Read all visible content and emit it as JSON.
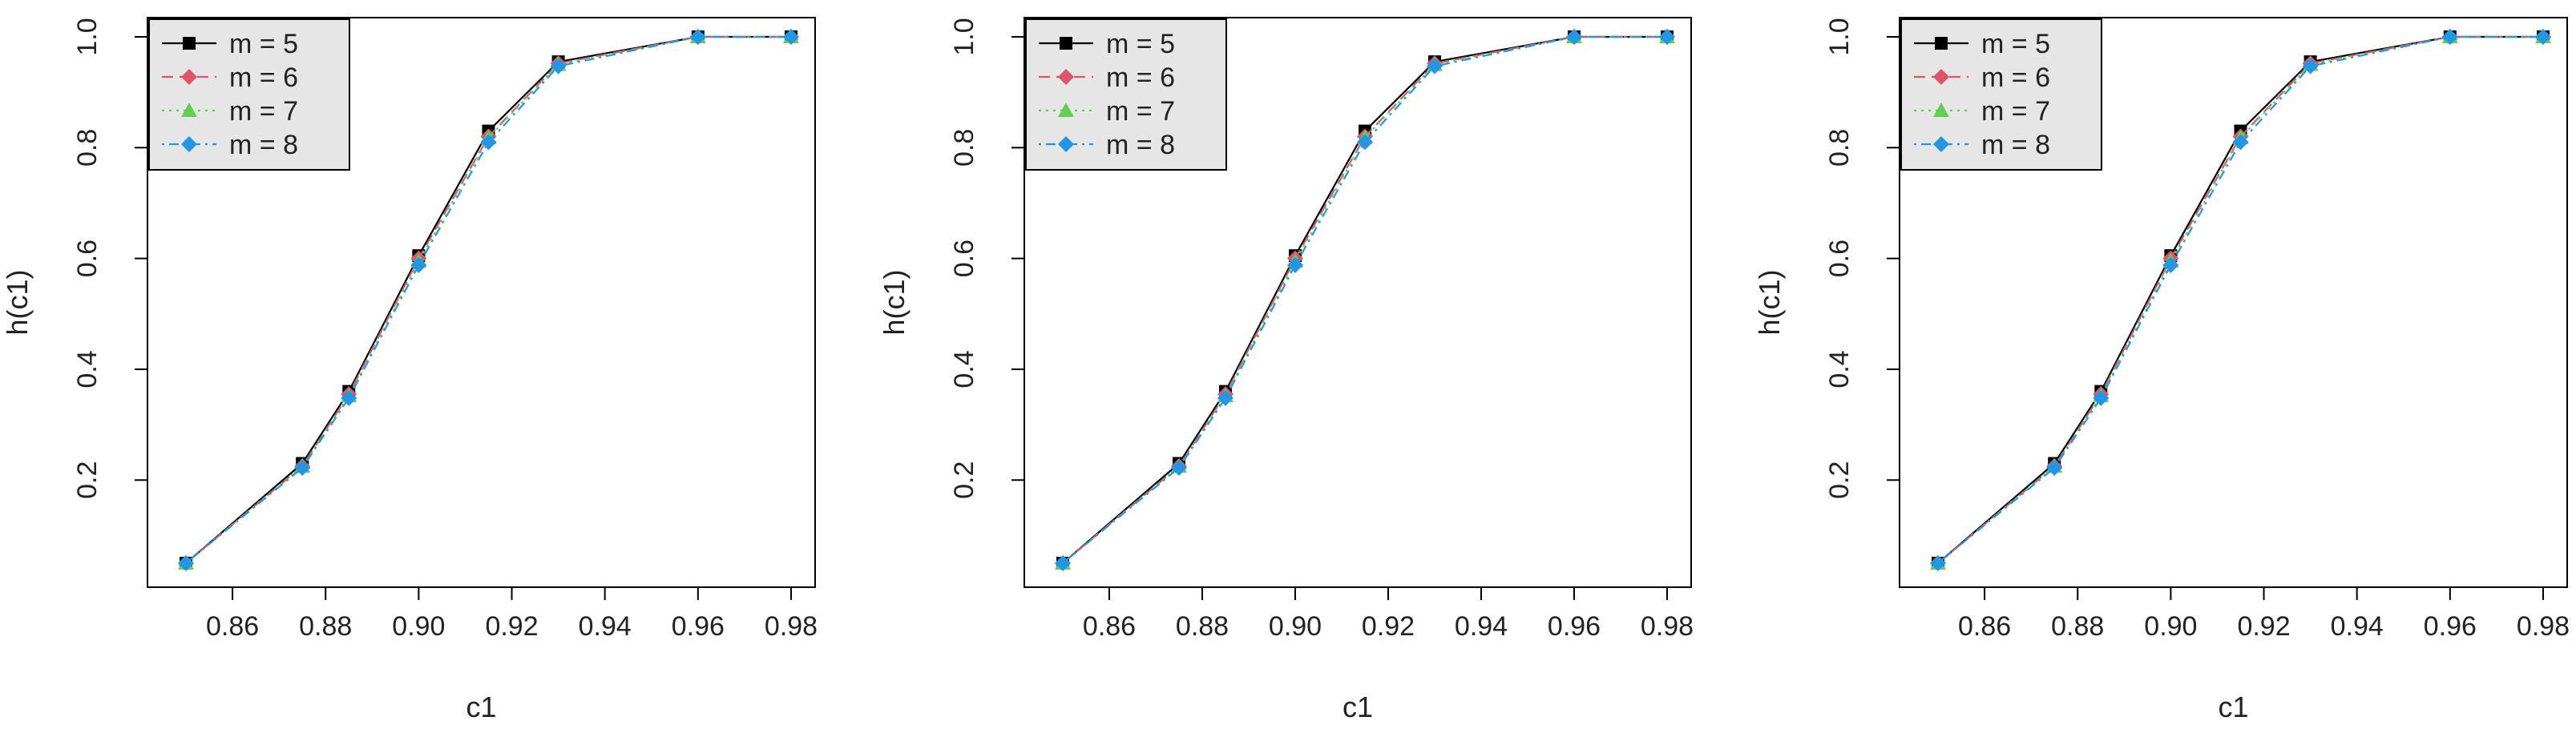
{
  "chart_data": [
    {
      "type": "line",
      "xlabel": "c1",
      "ylabel": "h(c1)",
      "x": [
        0.85,
        0.875,
        0.885,
        0.9,
        0.915,
        0.93,
        0.96,
        0.98
      ],
      "xlim": [
        0.85,
        0.98
      ],
      "ylim": [
        0.05,
        1.0
      ],
      "xticks": [
        "0.86",
        "0.88",
        "0.90",
        "0.92",
        "0.94",
        "0.96",
        "0.98"
      ],
      "yticks": [
        "0.2",
        "0.4",
        "0.6",
        "0.8",
        "1.0"
      ],
      "grid": false,
      "legend_position": "top-left",
      "series": [
        {
          "name": "m = 5",
          "values": [
            0.05,
            0.23,
            0.36,
            0.605,
            0.83,
            0.955,
            1.0,
            1.0
          ],
          "color": "#000000",
          "marker": "square",
          "line": "solid"
        },
        {
          "name": "m = 6",
          "values": [
            0.05,
            0.225,
            0.355,
            0.6,
            0.82,
            0.952,
            1.0,
            1.0
          ],
          "color": "#DF536B",
          "marker": "diamond",
          "line": "dashed"
        },
        {
          "name": "m = 7",
          "values": [
            0.05,
            0.225,
            0.352,
            0.595,
            0.818,
            0.95,
            1.0,
            1.0
          ],
          "color": "#61D04F",
          "marker": "triangle",
          "line": "dotted"
        },
        {
          "name": "m = 8",
          "values": [
            0.05,
            0.222,
            0.348,
            0.588,
            0.81,
            0.947,
            1.0,
            1.0
          ],
          "color": "#2297E6",
          "marker": "diamond",
          "line": "dotdash"
        }
      ]
    },
    {
      "type": "line",
      "xlabel": "c1",
      "ylabel": "h(c1)",
      "x": [
        0.85,
        0.875,
        0.885,
        0.9,
        0.915,
        0.93,
        0.96,
        0.98
      ],
      "xlim": [
        0.85,
        0.98
      ],
      "ylim": [
        0.05,
        1.0
      ],
      "xticks": [
        "0.86",
        "0.88",
        "0.90",
        "0.92",
        "0.94",
        "0.96",
        "0.98"
      ],
      "yticks": [
        "0.2",
        "0.4",
        "0.6",
        "0.8",
        "1.0"
      ],
      "grid": false,
      "legend_position": "top-left",
      "series": [
        {
          "name": "m = 5",
          "values": [
            0.05,
            0.23,
            0.36,
            0.605,
            0.83,
            0.955,
            1.0,
            1.0
          ],
          "color": "#000000",
          "marker": "square",
          "line": "solid"
        },
        {
          "name": "m = 6",
          "values": [
            0.05,
            0.225,
            0.355,
            0.6,
            0.82,
            0.952,
            1.0,
            1.0
          ],
          "color": "#DF536B",
          "marker": "diamond",
          "line": "dashed"
        },
        {
          "name": "m = 7",
          "values": [
            0.05,
            0.225,
            0.352,
            0.595,
            0.818,
            0.95,
            1.0,
            1.0
          ],
          "color": "#61D04F",
          "marker": "triangle",
          "line": "dotted"
        },
        {
          "name": "m = 8",
          "values": [
            0.05,
            0.222,
            0.348,
            0.588,
            0.81,
            0.947,
            1.0,
            1.0
          ],
          "color": "#2297E6",
          "marker": "diamond",
          "line": "dotdash"
        }
      ]
    },
    {
      "type": "line",
      "xlabel": "c1",
      "ylabel": "h(c1)",
      "x": [
        0.85,
        0.875,
        0.885,
        0.9,
        0.915,
        0.93,
        0.96,
        0.98
      ],
      "xlim": [
        0.85,
        0.98
      ],
      "ylim": [
        0.05,
        1.0
      ],
      "xticks": [
        "0.86",
        "0.88",
        "0.90",
        "0.92",
        "0.94",
        "0.96",
        "0.98"
      ],
      "yticks": [
        "0.2",
        "0.4",
        "0.6",
        "0.8",
        "1.0"
      ],
      "grid": false,
      "legend_position": "top-left",
      "series": [
        {
          "name": "m = 5",
          "values": [
            0.05,
            0.23,
            0.36,
            0.605,
            0.83,
            0.955,
            1.0,
            1.0
          ],
          "color": "#000000",
          "marker": "square",
          "line": "solid"
        },
        {
          "name": "m = 6",
          "values": [
            0.05,
            0.225,
            0.355,
            0.6,
            0.82,
            0.952,
            1.0,
            1.0
          ],
          "color": "#DF536B",
          "marker": "diamond",
          "line": "dashed"
        },
        {
          "name": "m = 7",
          "values": [
            0.05,
            0.225,
            0.352,
            0.595,
            0.818,
            0.95,
            1.0,
            1.0
          ],
          "color": "#61D04F",
          "marker": "triangle",
          "line": "dotted"
        },
        {
          "name": "m = 8",
          "values": [
            0.05,
            0.222,
            0.348,
            0.588,
            0.81,
            0.947,
            1.0,
            1.0
          ],
          "color": "#2297E6",
          "marker": "diamond",
          "line": "dotdash"
        }
      ]
    }
  ]
}
